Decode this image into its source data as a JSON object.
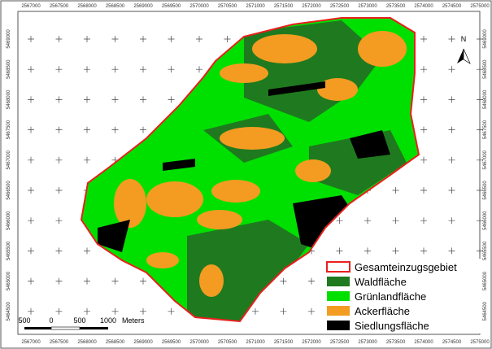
{
  "map": {
    "x_labels": [
      "2567000",
      "2567500",
      "2568000",
      "2568500",
      "2569000",
      "2569500",
      "2570000",
      "2570500",
      "2571000",
      "2571500",
      "2572000",
      "2572500",
      "2573000",
      "2573500",
      "2574000",
      "2574500",
      "2575000"
    ],
    "y_labels": [
      "5469000",
      "5468500",
      "5468000",
      "5467500",
      "5467000",
      "5466500",
      "5466000",
      "5465500",
      "5465000",
      "5464500"
    ],
    "legend": [
      {
        "label": "Gesamteinzugsgebiet",
        "color": "#e8201c"
      },
      {
        "label": "Waldfläche",
        "color": "#1f7a1f"
      },
      {
        "label": "Grünlandfläche",
        "color": "#00e000"
      },
      {
        "label": "Ackerfläche",
        "color": "#f39c21"
      },
      {
        "label": "Siedlungsfläche",
        "color": "#000000"
      }
    ],
    "scale_bar": {
      "labels": [
        "500",
        "0",
        "500",
        "1000"
      ],
      "unit": "Meters"
    },
    "north": "N"
  }
}
